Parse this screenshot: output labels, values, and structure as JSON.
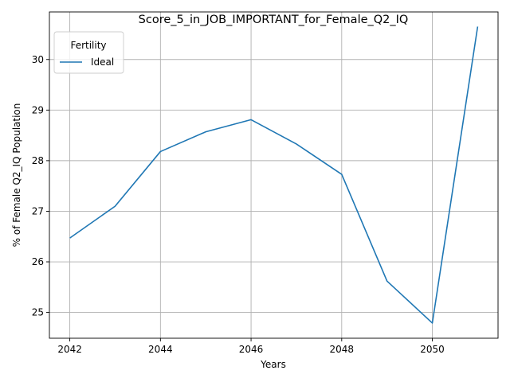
{
  "chart_data": {
    "type": "line",
    "title": "Score_5_in_JOB_IMPORTANT_for_Female_Q2_IQ",
    "xlabel": "Years",
    "ylabel": "% of Female Q2_IQ Population",
    "x": [
      2042,
      2043,
      2044,
      2045,
      2046,
      2047,
      2048,
      2049,
      2050,
      2051
    ],
    "series": [
      {
        "name": "Ideal",
        "color": "#1f77b4",
        "values": [
          26.47,
          27.1,
          28.18,
          28.57,
          28.81,
          28.33,
          27.73,
          25.62,
          24.79,
          30.65
        ]
      }
    ],
    "xlim": [
      2041.55,
      2051.45
    ],
    "ylim": [
      24.49,
      30.94
    ],
    "xticks": [
      "2042",
      "2044",
      "2046",
      "2048",
      "2050"
    ],
    "yticks": [
      "25",
      "26",
      "27",
      "28",
      "29",
      "30"
    ],
    "grid": true,
    "legend": {
      "title": "Fertility",
      "placement": "upper-left"
    }
  }
}
